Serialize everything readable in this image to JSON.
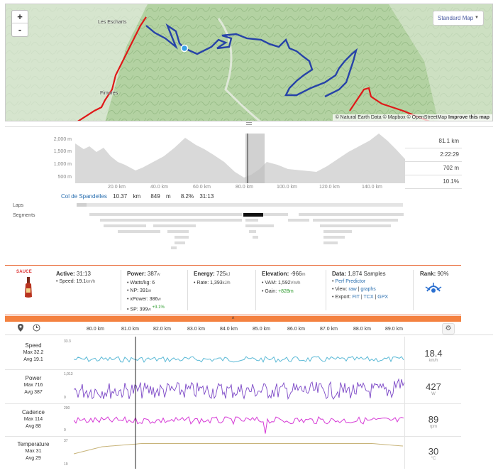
{
  "map": {
    "zoom_in": "+",
    "zoom_out": "-",
    "style_select": "Standard Map",
    "attribution": "© Natural Earth Data © Mapbox © OpenStreetMap",
    "improve_link": "Improve this map",
    "towns": [
      "Les Escharts",
      "Fimores"
    ]
  },
  "elevation": {
    "y_ticks": [
      "2,000 m",
      "1,500 m",
      "1,000 m",
      "500 m"
    ],
    "x_ticks": [
      "20.0 km",
      "40.0 km",
      "60.0 km",
      "80.0 km",
      "100.0 km",
      "120.0 km",
      "140.0 km"
    ],
    "stats": [
      "81.1 km",
      "2:22:29",
      "702 m",
      "10.1%"
    ]
  },
  "segment_info": {
    "name": "Col de Spandelles",
    "distance": "10.37",
    "distance_unit": "km",
    "gain": "849",
    "gain_unit": "m",
    "grade": "8.2%",
    "time": "31:13"
  },
  "rows": {
    "laps": "Laps",
    "segments": "Segments"
  },
  "sauce": {
    "label": "SAUCE"
  },
  "stats": {
    "active": {
      "label": "Active:",
      "value": "31:13",
      "speed_label": "Speed:",
      "speed": "19.1",
      "speed_unit": "km/h"
    },
    "power": {
      "label": "Power:",
      "value": "387",
      "unit": "w",
      "lines": [
        {
          "label": "Watts/kg:",
          "value": "6",
          "unit": ""
        },
        {
          "label": "NP:",
          "value": "391",
          "unit": "w"
        },
        {
          "label": "xPower:",
          "value": "386",
          "unit": "w"
        },
        {
          "label": "SP:",
          "value": "399",
          "unit": "w",
          "extra": "+3.1%"
        }
      ]
    },
    "energy": {
      "label": "Energy:",
      "value": "725",
      "unit": "kJ",
      "rate_label": "Rate:",
      "rate": "1,393",
      "rate_unit": "kJ/h"
    },
    "elevation": {
      "label": "Elevation:",
      "value": "-966",
      "unit": "m",
      "vam_label": "VAM:",
      "vam": "1,592",
      "vam_unit": "Vm/h",
      "gain_label": "Gain:",
      "gain": "+828m"
    },
    "data": {
      "label": "Data:",
      "value": "1,874 Samples",
      "predictor": "Perf Predictor",
      "view_label": "View:",
      "view_raw": "raw",
      "view_sep": "|",
      "view_graphs": "graphs",
      "export_label": "Export:",
      "export_fit": "FIT",
      "export_tcx": "TCX",
      "export_gpx": "GPX",
      "export_sep": "|"
    },
    "rank": {
      "label": "Rank:",
      "value": "90%"
    }
  },
  "timeline": {
    "handle": "˄",
    "x_ticks": [
      "80.0 km",
      "81.0 km",
      "82.0 km",
      "83.0 km",
      "84.0 km",
      "85.0 km",
      "86.0 km",
      "87.0 km",
      "88.0 km",
      "89.0 km"
    ]
  },
  "channels": [
    {
      "name": "Speed",
      "max": "Max 32.2",
      "avg": "Avg 19.1",
      "ymax": "33.3",
      "ymin": "",
      "value": "18.4",
      "unit": "km/h",
      "color": "#5ab9d6"
    },
    {
      "name": "Power",
      "max": "Max 716",
      "avg": "Avg 387",
      "ymax": "1,013",
      "ymin": "0",
      "value": "427",
      "unit": "W",
      "color": "#7b46c6"
    },
    {
      "name": "Cadence",
      "max": "Max 114",
      "avg": "Avg 88",
      "ymax": "200",
      "ymin": "0",
      "value": "89",
      "unit": "rpm",
      "color": "#d63ad6"
    },
    {
      "name": "Temperature",
      "max": "Max 31",
      "avg": "Avg 29",
      "ymax": "37",
      "ymin": "19",
      "value": "30",
      "unit": "°C",
      "color": "#c8b47a"
    }
  ]
}
